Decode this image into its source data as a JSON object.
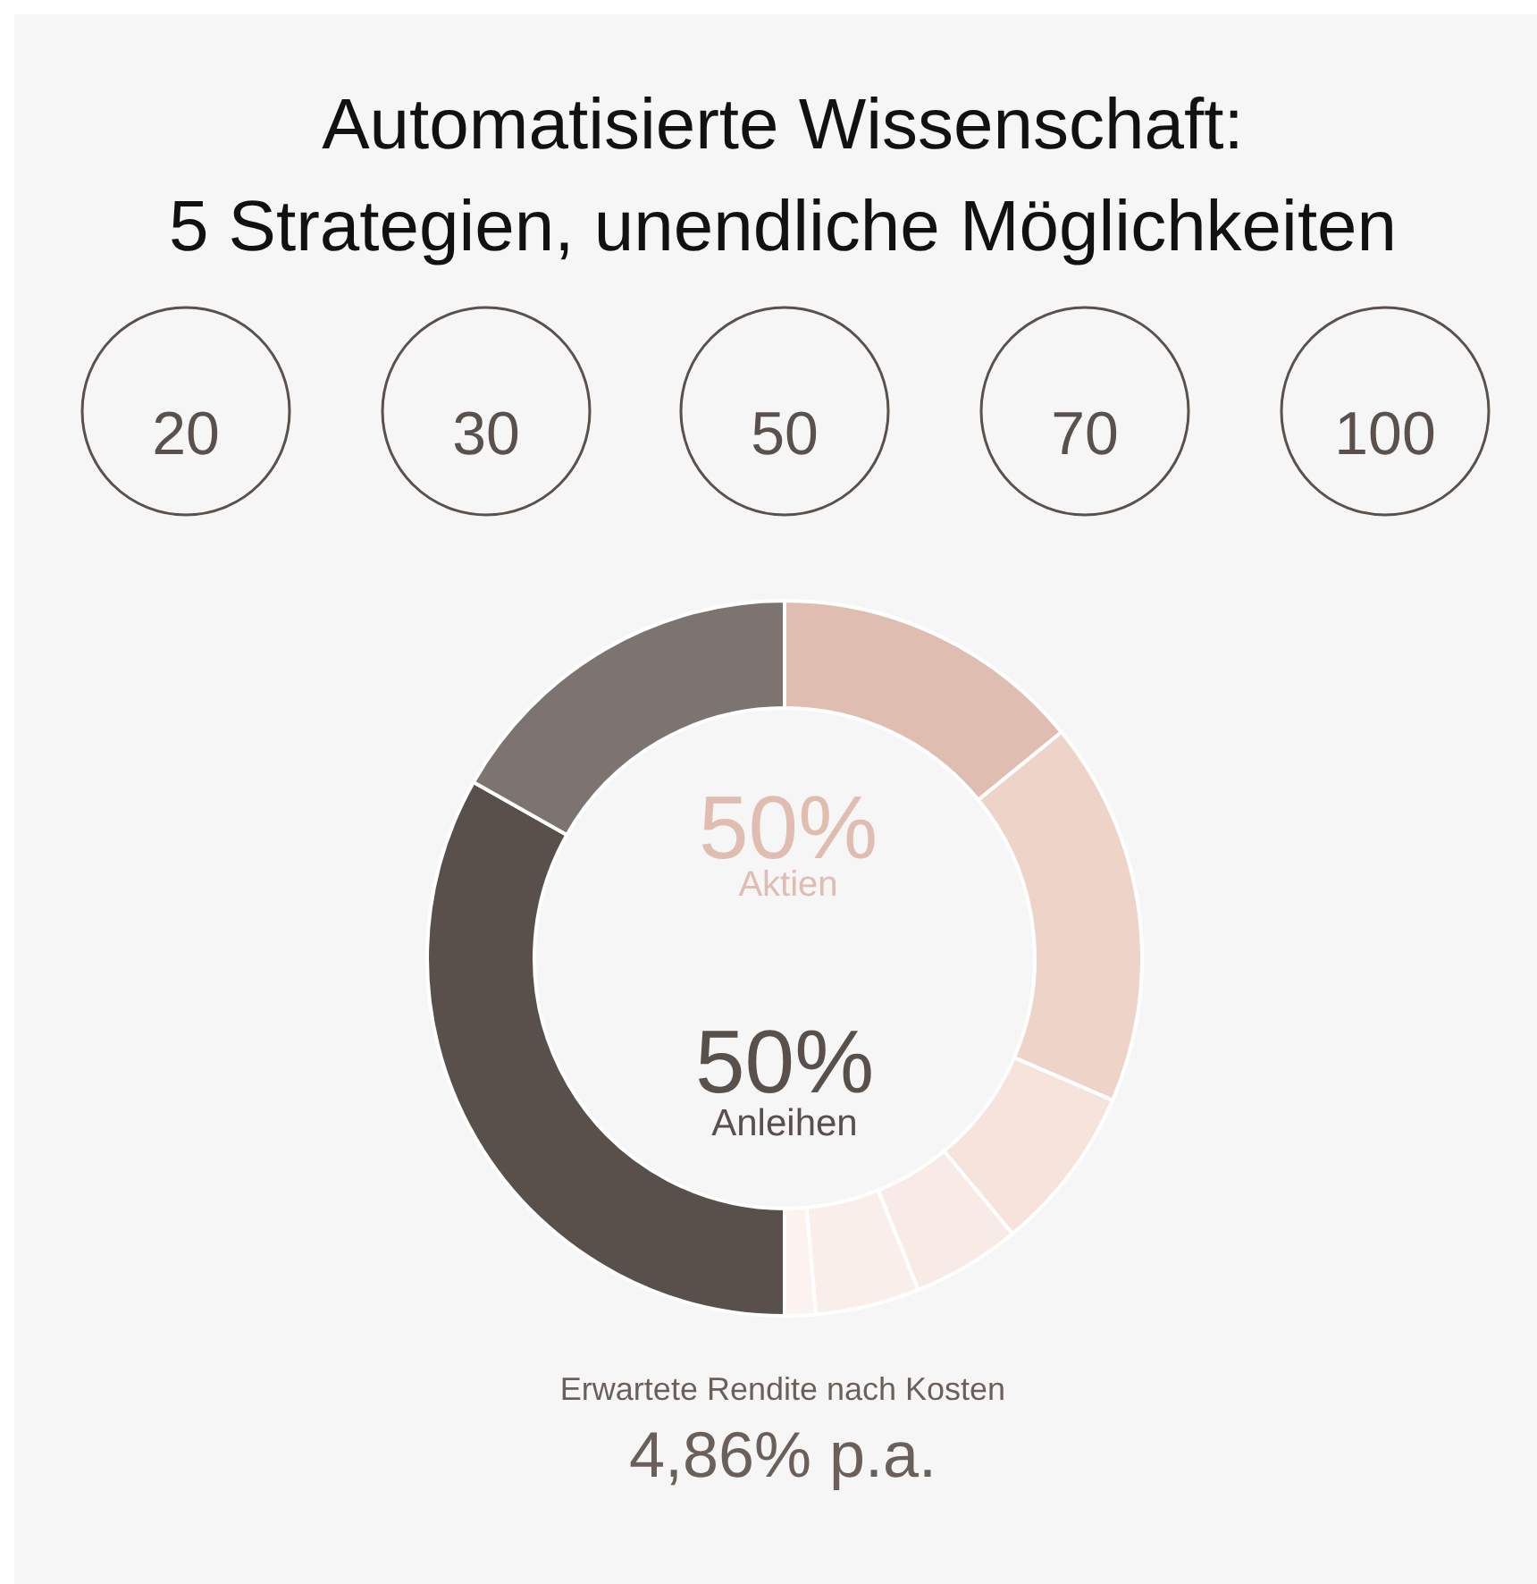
{
  "chart_data": {
    "type": "donut",
    "title": "Automatisierte Wissenschaft:",
    "subtitle": "5 Strategien, unendliche Möglichkeiten",
    "categories": [
      null,
      null,
      null,
      null,
      null,
      null,
      null,
      null
    ],
    "values": [
      14.1,
      17.4,
      7.5,
      4.9,
      4.7,
      1.4,
      33.2,
      16.8
    ],
    "colors": [
      "#dfbdb1",
      "#edd3c8",
      "#f5e3dc",
      "#f8eae5",
      "#faeeea",
      "#fcf3f0",
      "#594f4b",
      "#7d7471"
    ],
    "annotations": [
      "20",
      "30",
      "50",
      "70",
      "100",
      "50%",
      "Aktien",
      "50%",
      "Anleihen",
      "Erwartete Rendite nach Kosten",
      "4,86% p.a."
    ]
  }
}
